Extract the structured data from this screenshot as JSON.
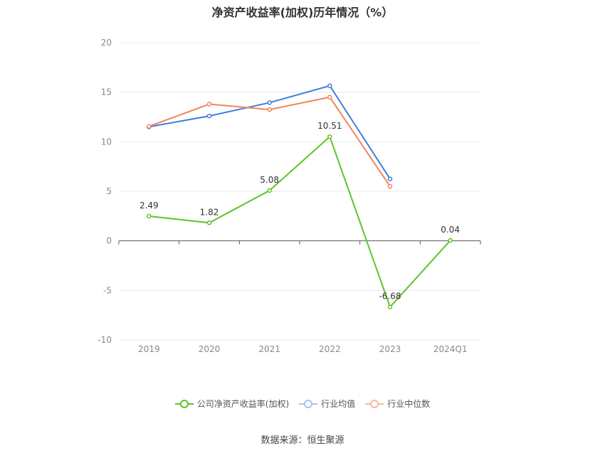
{
  "chart_data": {
    "type": "line",
    "title": "净资产收益率(加权)历年情况（%）",
    "categories": [
      "2019",
      "2020",
      "2021",
      "2022",
      "2023",
      "2024Q1"
    ],
    "ylim": [
      -10,
      20
    ],
    "yticks": [
      -10,
      -5,
      0,
      5,
      10,
      15,
      20
    ],
    "grid": true,
    "legend_position": "bottom",
    "series": [
      {
        "name": "公司净资产收益率(加权)",
        "color": "#5ec42a",
        "values": [
          2.49,
          1.82,
          5.08,
          10.51,
          -6.68,
          0.04
        ],
        "labels": [
          "2.49",
          "1.82",
          "5.08",
          "10.51",
          "-6.68",
          "0.04"
        ]
      },
      {
        "name": "行业均值",
        "color": "#3f7ee0",
        "values": [
          11.5,
          12.6,
          13.95,
          15.65,
          6.25,
          null
        ]
      },
      {
        "name": "行业中位数",
        "color": "#f0855a",
        "values": [
          11.55,
          13.8,
          13.25,
          14.5,
          5.5,
          null
        ]
      }
    ]
  },
  "source_text": "数据来源：恒生聚源"
}
